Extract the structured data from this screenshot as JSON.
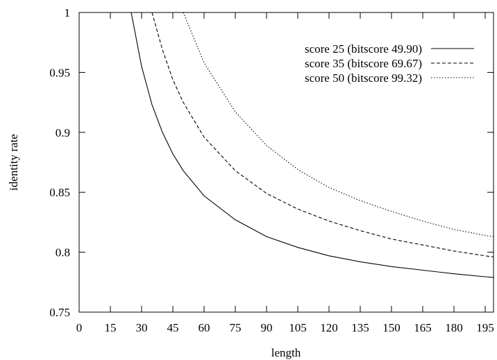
{
  "chart_data": {
    "type": "line",
    "title": "",
    "xlabel": "length",
    "ylabel": "identity rate",
    "xlim": [
      0,
      199
    ],
    "ylim": [
      0.75,
      1.0
    ],
    "grid": false,
    "legend_position": "top-right",
    "x_ticks": [
      0,
      15,
      30,
      45,
      60,
      75,
      90,
      105,
      120,
      135,
      150,
      165,
      180,
      195
    ],
    "x_tick_labels": [
      "0",
      "15",
      "30",
      "45",
      "60",
      "75",
      "90",
      "105",
      "120",
      "135",
      "150",
      "165",
      "180",
      "195"
    ],
    "y_ticks": [
      0.75,
      0.8,
      0.85,
      0.9,
      0.95,
      1.0
    ],
    "y_tick_labels": [
      "0.75",
      "0.8",
      "0.85",
      "0.9",
      "0.95",
      "1"
    ],
    "series": [
      {
        "name": "score 25 (bitscore 49.90)",
        "dash": "solid",
        "x": [
          25,
          30,
          35,
          40,
          45,
          50,
          60,
          75,
          90,
          105,
          120,
          135,
          150,
          165,
          180,
          195,
          199
        ],
        "y": [
          1.0,
          0.955,
          0.923,
          0.9,
          0.882,
          0.868,
          0.847,
          0.827,
          0.813,
          0.804,
          0.797,
          0.792,
          0.788,
          0.785,
          0.782,
          0.7795,
          0.779
        ]
      },
      {
        "name": "score 35 (bitscore 69.67)",
        "dash": "dashed",
        "x": [
          35,
          40,
          45,
          50,
          60,
          75,
          90,
          105,
          120,
          135,
          150,
          165,
          180,
          195,
          199
        ],
        "y": [
          1.0,
          0.969,
          0.944,
          0.925,
          0.896,
          0.868,
          0.849,
          0.836,
          0.826,
          0.818,
          0.811,
          0.806,
          0.801,
          0.797,
          0.796
        ]
      },
      {
        "name": "score 50 (bitscore 99.32)",
        "dash": "dotted",
        "x": [
          50,
          60,
          75,
          90,
          105,
          120,
          135,
          150,
          165,
          180,
          195,
          199
        ],
        "y": [
          1.0,
          0.958,
          0.917,
          0.889,
          0.869,
          0.854,
          0.843,
          0.834,
          0.826,
          0.819,
          0.814,
          0.813
        ]
      }
    ]
  }
}
